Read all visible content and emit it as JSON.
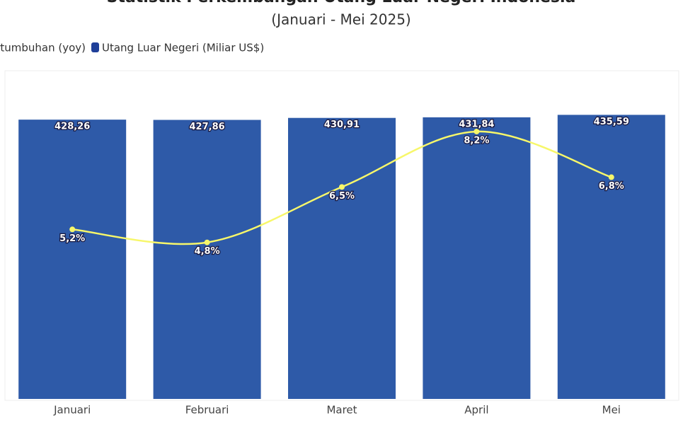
{
  "chart_data": {
    "type": "bar-line",
    "title": "Statistik Perkembangan Utang Luar Negeri Indonesia",
    "subtitle": "(Januari - Mei 2025)",
    "categories": [
      "Januari",
      "Februari",
      "Maret",
      "April",
      "Mei"
    ],
    "series": [
      {
        "name": "Pertumbuhan (yoy)",
        "type": "line",
        "axis": "y2",
        "color": "#f7f76a",
        "values": [
          5.2,
          4.8,
          6.5,
          8.2,
          6.8
        ],
        "value_labels": [
          "5,2%",
          "4,8%",
          "6,5%",
          "8,2%",
          "6,8%"
        ]
      },
      {
        "name": "Utang Luar Negeri (Miliar US$)",
        "type": "bar",
        "color": "#2e5aa8",
        "values": [
          428.26,
          427.86,
          430.91,
          431.84,
          435.59
        ],
        "value_labels": [
          "428,26",
          "427,86",
          "430,91",
          "431,84",
          "435,59"
        ]
      }
    ],
    "ylim": [
      0,
      500
    ],
    "y2lim": [
      0,
      10
    ],
    "grid": false
  }
}
